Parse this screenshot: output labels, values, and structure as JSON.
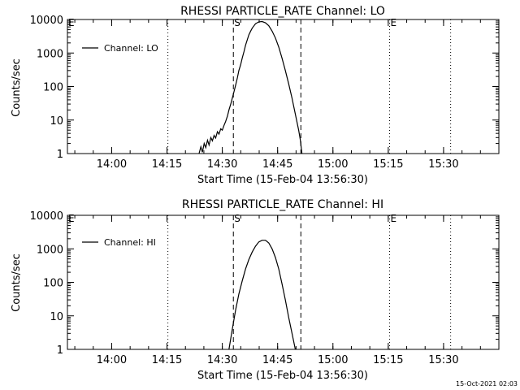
{
  "footer": {
    "timestamp": "15-Oct-2021 02:03"
  },
  "chart_data": [
    {
      "type": "line",
      "title": "RHESSI PARTICLE_RATE Channel: LO",
      "xlabel": "Start Time (15-Feb-04 13:56:30)",
      "ylabel": "Counts/sec",
      "xlim": [
        13.8,
        15.75
      ],
      "ylim": [
        1,
        10000
      ],
      "yscale": "log",
      "grid": false,
      "legend": {
        "label": "Channel: LO",
        "position": "top-left"
      },
      "xticks": [
        {
          "value": 14.0,
          "label": "14:00"
        },
        {
          "value": 14.25,
          "label": "14:15"
        },
        {
          "value": 14.5,
          "label": "14:30"
        },
        {
          "value": 14.75,
          "label": "14:45"
        },
        {
          "value": 15.0,
          "label": "15:00"
        },
        {
          "value": 15.25,
          "label": "15:15"
        },
        {
          "value": 15.5,
          "label": "15:30"
        }
      ],
      "yticks": [
        {
          "value": 1,
          "label": "1"
        },
        {
          "value": 10,
          "label": "10"
        },
        {
          "value": 100,
          "label": "100"
        },
        {
          "value": 1000,
          "label": "1000"
        },
        {
          "value": 10000,
          "label": "10000"
        }
      ],
      "markers": [
        {
          "x": 13.8,
          "style": "dotted",
          "label": "E"
        },
        {
          "x": 14.254,
          "style": "dotted",
          "label": ""
        },
        {
          "x": 14.55,
          "style": "dashed",
          "label": "S"
        },
        {
          "x": 14.855,
          "style": "dashed",
          "label": ""
        },
        {
          "x": 15.256,
          "style": "dotted",
          "label": "E"
        },
        {
          "x": 15.532,
          "style": "dotted",
          "label": ""
        }
      ],
      "series": [
        {
          "name": "Channel: LO",
          "x": [
            14.395,
            14.403,
            14.41,
            14.418,
            14.425,
            14.433,
            14.44,
            14.448,
            14.455,
            14.463,
            14.47,
            14.478,
            14.485,
            14.493,
            14.5,
            14.508,
            14.515,
            14.523,
            14.53,
            14.538,
            14.545,
            14.553,
            14.56,
            14.568,
            14.575,
            14.583,
            14.59,
            14.598,
            14.605,
            14.613,
            14.62,
            14.628,
            14.635,
            14.643,
            14.65,
            14.665,
            14.68,
            14.695,
            14.71,
            14.725,
            14.74,
            14.755,
            14.77,
            14.785,
            14.8,
            14.815,
            14.83,
            14.845,
            14.853,
            14.86
          ],
          "y": [
            1,
            1.6,
            1.1,
            2,
            1.5,
            2.5,
            1.8,
            3,
            2.4,
            3.5,
            2.9,
            4.5,
            3.8,
            5.5,
            5,
            7,
            9,
            13,
            20,
            30,
            45,
            70,
            110,
            180,
            300,
            450,
            700,
            1100,
            1700,
            2500,
            3500,
            4500,
            5500,
            6500,
            7500,
            8500,
            8700,
            8000,
            6500,
            4500,
            2800,
            1500,
            700,
            300,
            120,
            45,
            15,
            5,
            2.5,
            1
          ]
        }
      ]
    },
    {
      "type": "line",
      "title": "RHESSI PARTICLE_RATE Channel: HI",
      "xlabel": "Start Time (15-Feb-04 13:56:30)",
      "ylabel": "Counts/sec",
      "xlim": [
        13.8,
        15.75
      ],
      "ylim": [
        1,
        10000
      ],
      "yscale": "log",
      "grid": false,
      "legend": {
        "label": "Channel: HI",
        "position": "top-left"
      },
      "xticks": [
        {
          "value": 14.0,
          "label": "14:00"
        },
        {
          "value": 14.25,
          "label": "14:15"
        },
        {
          "value": 14.5,
          "label": "14:30"
        },
        {
          "value": 14.75,
          "label": "14:45"
        },
        {
          "value": 15.0,
          "label": "15:00"
        },
        {
          "value": 15.25,
          "label": "15:15"
        },
        {
          "value": 15.5,
          "label": "15:30"
        }
      ],
      "yticks": [
        {
          "value": 1,
          "label": "1"
        },
        {
          "value": 10,
          "label": "10"
        },
        {
          "value": 100,
          "label": "100"
        },
        {
          "value": 1000,
          "label": "1000"
        },
        {
          "value": 10000,
          "label": "10000"
        }
      ],
      "markers": [
        {
          "x": 13.8,
          "style": "dotted",
          "label": "E"
        },
        {
          "x": 14.254,
          "style": "dotted",
          "label": ""
        },
        {
          "x": 14.55,
          "style": "dashed",
          "label": "S"
        },
        {
          "x": 14.855,
          "style": "dashed",
          "label": ""
        },
        {
          "x": 15.256,
          "style": "dotted",
          "label": "E"
        },
        {
          "x": 15.532,
          "style": "dotted",
          "label": ""
        }
      ],
      "series": [
        {
          "name": "Channel: HI",
          "x": [
            14.53,
            14.545,
            14.56,
            14.575,
            14.59,
            14.605,
            14.62,
            14.635,
            14.65,
            14.665,
            14.68,
            14.695,
            14.71,
            14.725,
            14.74,
            14.755,
            14.77,
            14.785,
            14.8,
            14.815,
            14.83
          ],
          "y": [
            1,
            4,
            15,
            45,
            110,
            250,
            480,
            800,
            1200,
            1600,
            1800,
            1800,
            1500,
            1000,
            550,
            250,
            90,
            30,
            9,
            3,
            1
          ]
        }
      ]
    }
  ]
}
